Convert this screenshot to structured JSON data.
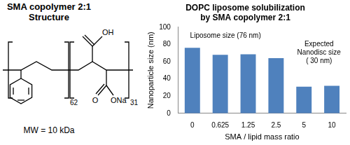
{
  "chart_data": {
    "type": "bar",
    "title": [
      "DOPC liposome solubilization",
      "by SMA copolymer 2:1"
    ],
    "x_label": "SMA / lipid mass ratio",
    "y_label": "Nanoparticle size (nm)",
    "categories": [
      "0",
      "0.625",
      "1.25",
      "2.5",
      "5",
      "10"
    ],
    "values": [
      76,
      68,
      68.5,
      64,
      31,
      32
    ],
    "color": "#4f81bd",
    "ylim": [
      0,
      100
    ],
    "yticks": [
      0,
      20,
      40,
      60,
      80,
      100
    ],
    "grid": false,
    "annotations": [
      [
        "Liposome size (76 nm)"
      ],
      [
        "Expected",
        "Nanodisc size",
        "( 30 nm)"
      ]
    ]
  },
  "structure": {
    "title": [
      "SMA copolymer 2:1",
      "Structure"
    ],
    "top_group": "OH",
    "bottom_groups": [
      "O",
      "ONa"
    ],
    "subscripts": [
      62,
      31
    ],
    "note": "MW = 10 kDa"
  }
}
